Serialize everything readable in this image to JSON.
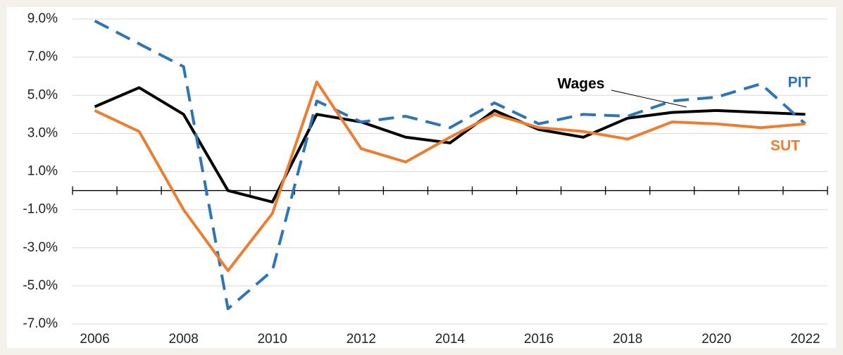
{
  "chart_data": {
    "type": "line",
    "categories": [
      "2006",
      null,
      "2008",
      null,
      "2010",
      null,
      "2012",
      null,
      "2014",
      null,
      "2016",
      null,
      "2018",
      null,
      "2020",
      null,
      "2022"
    ],
    "series": [
      {
        "name": "Wages",
        "color": "#000000",
        "dash": false,
        "values": [
          4.4,
          5.4,
          4.0,
          0.0,
          -0.6,
          4.0,
          3.6,
          2.8,
          2.5,
          4.2,
          3.2,
          2.8,
          3.8,
          4.1,
          4.2,
          4.1,
          4.0
        ]
      },
      {
        "name": "PIT",
        "color": "#2e75b6",
        "dash": true,
        "values": [
          8.9,
          7.7,
          6.5,
          -6.2,
          -4.2,
          4.7,
          3.6,
          3.9,
          3.3,
          4.6,
          3.5,
          4.0,
          3.9,
          4.7,
          4.9,
          5.6,
          3.5
        ]
      },
      {
        "name": "SUT",
        "color": "#ed7d31",
        "dash": false,
        "values": [
          4.2,
          3.1,
          -1.0,
          -4.2,
          -1.2,
          5.7,
          2.2,
          1.5,
          2.8,
          4.0,
          3.3,
          3.1,
          2.7,
          3.6,
          3.5,
          3.3,
          3.5
        ]
      }
    ],
    "ylim": [
      -7,
      9
    ],
    "yticks": [
      {
        "value": -7,
        "label": "-7.0%"
      },
      {
        "value": -5,
        "label": "-5.0%"
      },
      {
        "value": -3,
        "label": "-3.0%"
      },
      {
        "value": -1,
        "label": "-1.0%"
      },
      {
        "value": 1,
        "label": "1.0%"
      },
      {
        "value": 3,
        "label": "3.0%"
      },
      {
        "value": 5,
        "label": "5.0%"
      },
      {
        "value": 7,
        "label": "7.0%"
      },
      {
        "value": 9,
        "label": "9.0%"
      }
    ],
    "grid": true
  }
}
